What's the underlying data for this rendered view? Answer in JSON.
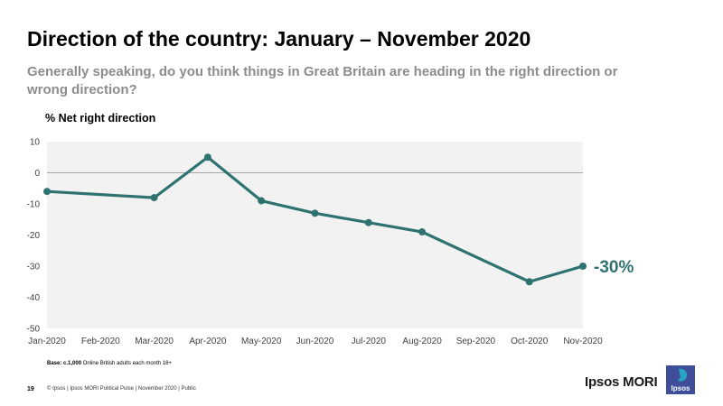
{
  "header": {
    "title": "Direction of the country: January – November 2020",
    "subtitle": "Generally speaking, do you think things in Great Britain are heading in the right direction or wrong direction?"
  },
  "chart_data": {
    "type": "line",
    "ylabel": "% Net right direction",
    "ylim": [
      -50,
      10
    ],
    "yticks": [
      10,
      0,
      -10,
      -20,
      -30,
      -40,
      -50
    ],
    "categories": [
      "Jan-2020",
      "Feb-2020",
      "Mar-2020",
      "Apr-2020",
      "May-2020",
      "Jun-2020",
      "Jul-2020",
      "Aug-2020",
      "Sep-2020",
      "Oct-2020",
      "Nov-2020"
    ],
    "series": [
      {
        "values": [
          -6,
          null,
          -8,
          5,
          -9,
          -13,
          -16,
          -19,
          null,
          -35,
          -30
        ],
        "color": "#2f7370"
      }
    ],
    "end_label": "-30%",
    "zero_line": true,
    "grid": false,
    "plot_background": "#f2f2f2"
  },
  "footer": {
    "base_bold": "Base: c.1,000",
    "base_rest": " Online British adults each month 18+",
    "page_number": "19",
    "legal": "© Ipsos | Ipsos MORI Political Pulse | November  2020 | Public",
    "brand": "Ipsos MORI",
    "logo_text": "Ipsos"
  },
  "colors": {
    "series": "#2f7370",
    "subtitle": "#8c8c8c",
    "logo_bg": "#3f4e9b",
    "logo_accent": "#27a4c4"
  }
}
